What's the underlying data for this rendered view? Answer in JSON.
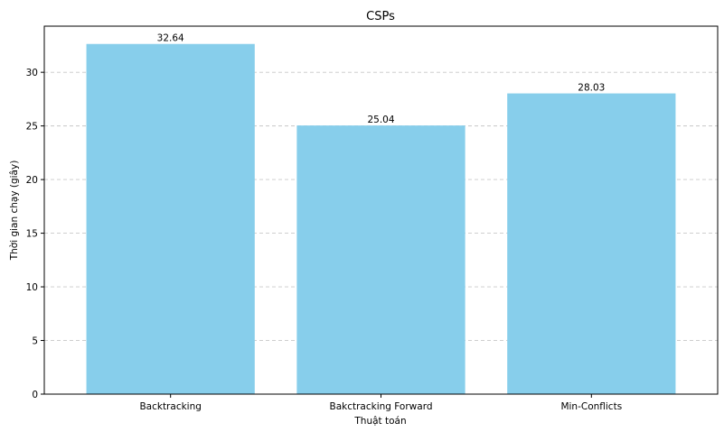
{
  "chart_data": {
    "type": "bar",
    "title": "CSPs",
    "xlabel": "Thuật toán",
    "ylabel": "Thời gian chạy (giây)",
    "categories": [
      "Backtracking",
      "Bakctracking Forward",
      "Min-Conflicts"
    ],
    "values": [
      32.64,
      25.04,
      28.03
    ],
    "value_labels": [
      "32.64",
      "25.04",
      "28.03"
    ],
    "ylim": [
      0,
      34.3
    ],
    "yticks": [
      0,
      5,
      10,
      15,
      20,
      25,
      30
    ],
    "grid": "y-dashed",
    "bar_color": "#87CEEB"
  }
}
